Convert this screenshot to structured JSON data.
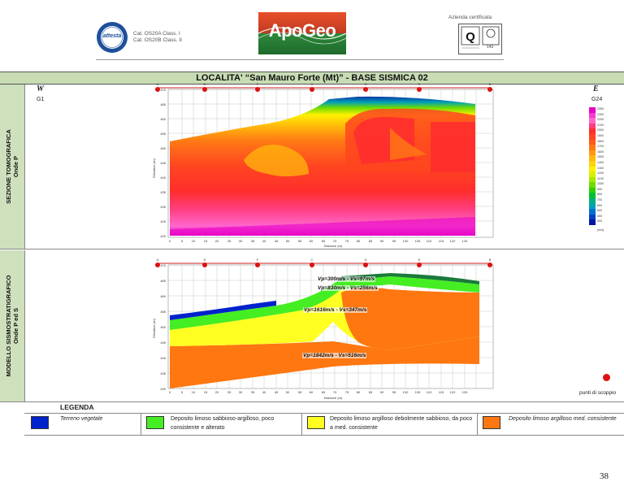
{
  "header": {
    "cat_lines": [
      "Cat. OS20A Class. I",
      "Cat. OS20B Class. II"
    ],
    "badge_text": "attesta",
    "company_logo": "ApoGeo",
    "cert_label": "Azienda certificata",
    "cert_number": "143"
  },
  "title": "LOCALITA' “San Mauro Forte (Mt)” - BASE SISMICA 02",
  "side_labels": {
    "tomo": [
      "SEZIONE TOMOGRAFICA",
      "Onde P"
    ],
    "model": [
      "MODELLO SISMOSTRATIGRAFICO",
      "Onde P ed S"
    ]
  },
  "section": {
    "west": "W",
    "east": "E",
    "geo_start": "G1",
    "geo_end": "G24"
  },
  "color_scale": {
    "values": [
      "2350",
      "2300",
      "2200",
      "2100",
      "2000",
      "1900",
      "1800",
      "1700",
      "1600",
      "1500",
      "1400",
      "1300",
      "1200",
      "1100",
      "1000",
      "900",
      "800",
      "700",
      "600",
      "500",
      "400",
      "300"
    ],
    "colors": [
      "#e600c8",
      "#f23cd2",
      "#ff66cc",
      "#ff3d7f",
      "#ff2d2d",
      "#ff4520",
      "#ff5a18",
      "#ff7a14",
      "#ff9a10",
      "#ffb80c",
      "#ffd408",
      "#fff000",
      "#d8f000",
      "#a8e800",
      "#70dc00",
      "#30d000",
      "#00c030",
      "#00b080",
      "#00a0b8",
      "#0070d0",
      "#0040c0",
      "#0018a0"
    ],
    "unit": "(m/s)"
  },
  "shot_points": [
    "A",
    "D",
    "F",
    "C",
    "G",
    "E",
    "B"
  ],
  "axis": {
    "x_ticks": [
      "0",
      "5",
      "10",
      "15",
      "20",
      "25",
      "30",
      "35",
      "40",
      "45",
      "50",
      "55",
      "60",
      "65",
      "70",
      "75",
      "80",
      "85",
      "90",
      "95",
      "100",
      "105",
      "110",
      "115",
      "120",
      "125"
    ],
    "y_ticks": [
      "470",
      "465",
      "460",
      "455",
      "450",
      "445",
      "440",
      "435",
      "430",
      "425",
      "420"
    ],
    "y_ticks_model": [
      "470",
      "465",
      "460",
      "455",
      "450",
      "445",
      "440",
      "435",
      "430"
    ],
    "x_label": "Distance (m)",
    "y_label": "Elevation (m)"
  },
  "velocities": [
    "Vp=300m/s - Vs=97m/s",
    "Vp=830m/s - Vs=256m/s",
    "Vp=1616m/s - Vs=347m/s",
    "Vp=1842m/s - Vs=516m/s"
  ],
  "punti_label": "punti di scoppio",
  "legend": {
    "title": "LEGENDA",
    "items": [
      {
        "color": "#0022cc",
        "text": "Terreno vegetale"
      },
      {
        "color": "#44ee22",
        "text": "Deposito limoso sabbioso-argilloso, poco consistente e alterato"
      },
      {
        "color": "#ffff22",
        "text": "Deposito limoso argilloso debolmente sabbioso, da poco a med. consistente"
      },
      {
        "color": "#ff7711",
        "text": "Deposito limoso argilloso med. consistente"
      }
    ]
  },
  "page_number": "38"
}
